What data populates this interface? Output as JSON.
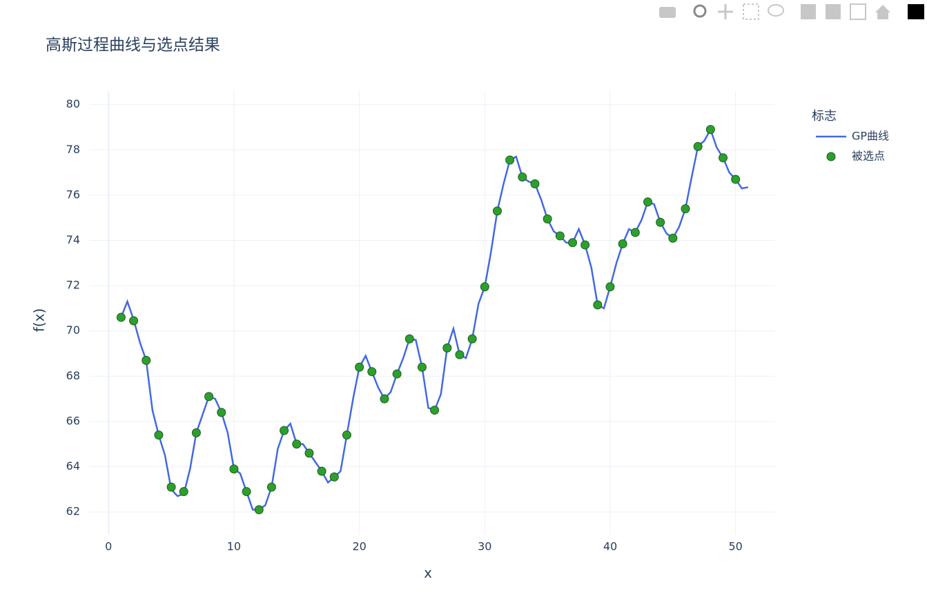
{
  "chart_data": {
    "type": "line",
    "title": "高斯过程曲线与选点结果",
    "x_label": "x",
    "y_label": "f(x)",
    "legend_title": "标志",
    "legend_position": "right",
    "xlim": [
      -1.5,
      53.1
    ],
    "ylim": [
      61,
      80.6
    ],
    "xticks": [
      0,
      10,
      20,
      30,
      40,
      50
    ],
    "yticks": [
      62,
      64,
      66,
      68,
      70,
      72,
      74,
      76,
      78,
      80
    ],
    "grid": true,
    "series": [
      {
        "name": "GP曲线",
        "type": "line",
        "color": "#4169e1",
        "x": [
          1,
          1.5,
          2,
          2.5,
          3,
          3.5,
          4,
          4.5,
          5,
          5.5,
          6,
          6.5,
          7,
          7.5,
          8,
          8.5,
          9,
          9.5,
          10,
          10.5,
          11,
          11.5,
          12,
          12.5,
          13,
          13.5,
          14,
          14.5,
          15,
          15.5,
          16,
          16.5,
          17,
          17.5,
          18,
          18.5,
          19,
          19.5,
          20,
          20.5,
          21,
          21.5,
          22,
          22.5,
          23,
          23.5,
          24,
          24.5,
          25,
          25.5,
          26,
          26.5,
          27,
          27.5,
          28,
          28.5,
          29,
          29.5,
          30,
          30.5,
          31,
          31.5,
          32,
          32.5,
          33,
          33.5,
          34,
          34.5,
          35,
          35.5,
          36,
          36.5,
          37,
          37.5,
          38,
          38.5,
          39,
          39.5,
          40,
          40.5,
          41,
          41.5,
          42,
          42.5,
          43,
          43.5,
          44,
          44.5,
          45,
          45.5,
          46,
          46.5,
          47,
          47.5,
          48,
          48.5,
          49,
          49.5,
          50,
          50.5,
          51
        ],
        "values": [
          70.6,
          71.3,
          70.5,
          69.5,
          68.7,
          66.5,
          65.4,
          64.5,
          63.0,
          62.7,
          62.8,
          63.9,
          65.5,
          66.3,
          67.1,
          67.0,
          66.4,
          65.5,
          63.9,
          63.7,
          62.9,
          62.1,
          62.1,
          62.3,
          63.1,
          64.8,
          65.6,
          65.9,
          65.0,
          65.0,
          64.6,
          64.2,
          63.8,
          63.3,
          63.55,
          63.8,
          65.4,
          67.0,
          68.4,
          68.9,
          68.2,
          67.5,
          67.0,
          67.3,
          68.1,
          68.8,
          69.65,
          69.6,
          68.4,
          66.6,
          66.5,
          67.2,
          69.25,
          70.1,
          68.95,
          68.8,
          69.65,
          71.2,
          71.95,
          73.5,
          75.3,
          76.5,
          77.55,
          77.7,
          76.8,
          76.6,
          76.5,
          75.8,
          74.95,
          74.4,
          74.2,
          73.9,
          73.9,
          74.5,
          73.8,
          72.8,
          71.15,
          71.0,
          71.95,
          73.0,
          73.85,
          74.5,
          74.35,
          74.9,
          75.7,
          75.6,
          74.8,
          74.3,
          74.1,
          74.6,
          75.4,
          76.8,
          78.15,
          78.4,
          78.9,
          78.1,
          77.65,
          77.0,
          76.7,
          76.3,
          76.35
        ]
      },
      {
        "name": "被选点",
        "type": "scatter",
        "color": "#2ca02c",
        "edge_color": "#1e5a1e",
        "x": [
          1,
          2,
          3,
          4,
          5,
          6,
          7,
          8,
          9,
          10,
          11,
          12,
          13,
          14,
          15,
          16,
          17,
          18,
          19,
          20,
          21,
          22,
          23,
          24,
          25,
          26,
          27,
          28,
          29,
          30,
          31,
          32,
          33,
          34,
          35,
          36,
          37,
          38,
          39,
          40,
          41,
          42,
          43,
          44,
          45,
          46,
          47,
          48,
          49,
          50
        ],
        "values": [
          70.6,
          70.45,
          68.7,
          65.4,
          63.1,
          62.9,
          65.5,
          67.1,
          66.4,
          63.9,
          62.9,
          62.1,
          63.1,
          65.6,
          65.0,
          64.6,
          63.8,
          63.55,
          65.4,
          68.4,
          68.2,
          67.0,
          68.1,
          69.65,
          68.4,
          66.5,
          69.25,
          68.95,
          69.65,
          71.95,
          75.3,
          77.55,
          76.8,
          76.5,
          74.95,
          74.2,
          73.9,
          73.8,
          71.15,
          71.95,
          73.85,
          74.35,
          75.7,
          74.8,
          74.1,
          75.4,
          78.15,
          78.9,
          77.65,
          76.7
        ]
      }
    ]
  }
}
